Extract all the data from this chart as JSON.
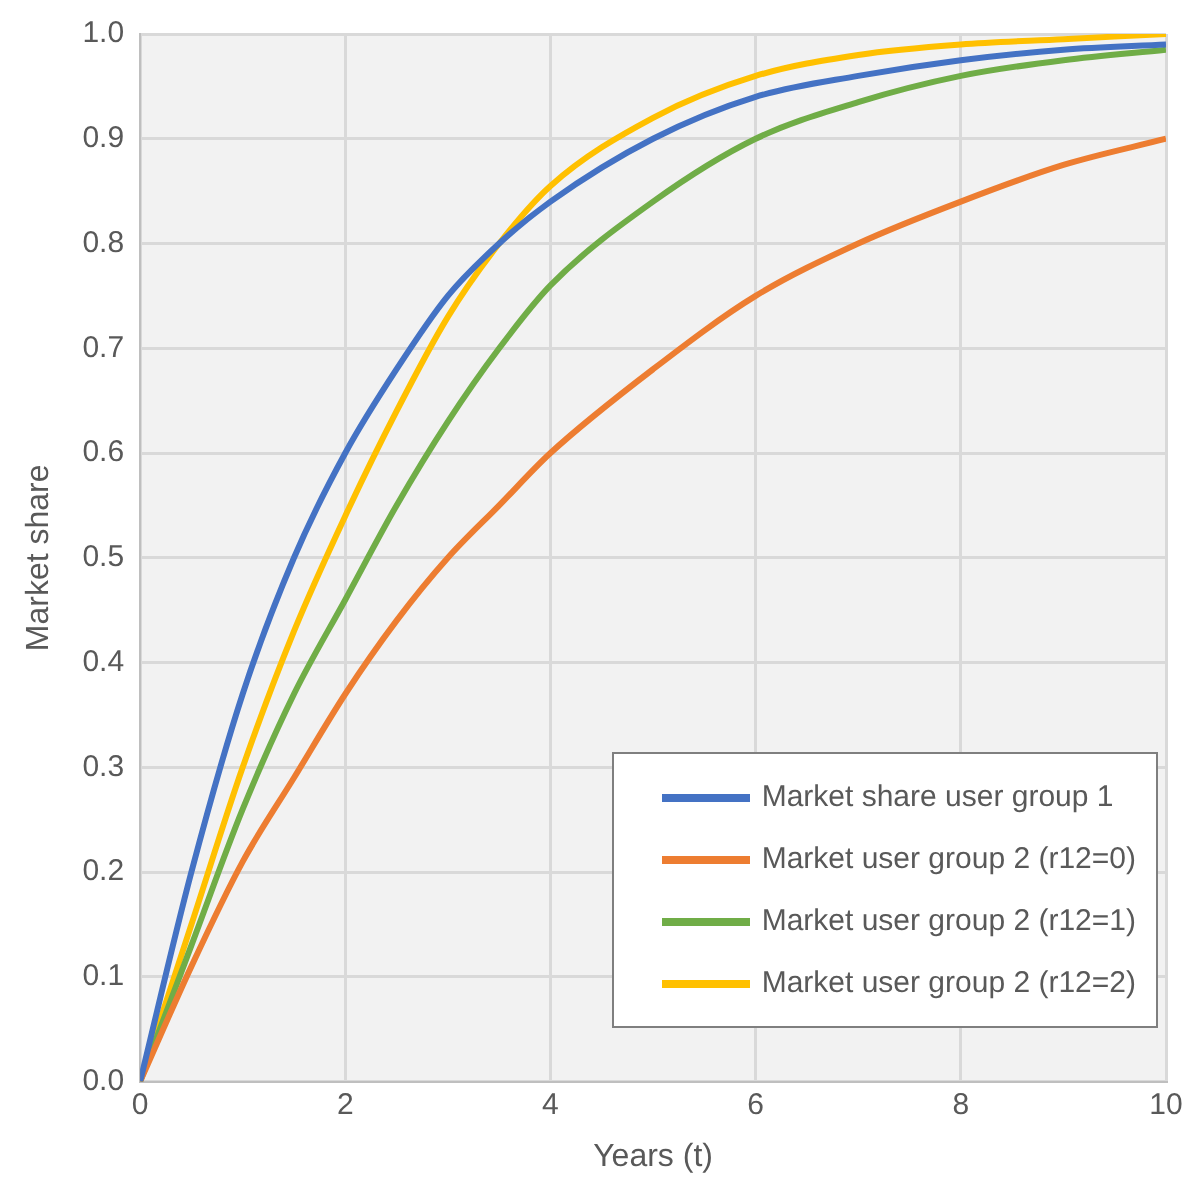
{
  "chart_data": {
    "type": "line",
    "xlabel": "Years (t)",
    "ylabel": "Market share",
    "x": [
      0,
      0.5,
      1,
      1.5,
      2,
      2.5,
      3,
      3.5,
      4,
      5,
      6,
      7,
      8,
      9,
      10
    ],
    "series": [
      {
        "name": "Market share user group 1",
        "color": "#4472c4",
        "values": [
          0,
          0.2,
          0.37,
          0.5,
          0.6,
          0.68,
          0.75,
          0.8,
          0.84,
          0.9,
          0.94,
          0.96,
          0.975,
          0.985,
          0.99
        ]
      },
      {
        "name": "Market user group 2 (r12=0)",
        "color": "#ed7d31",
        "values": [
          0,
          0.11,
          0.21,
          0.29,
          0.37,
          0.44,
          0.5,
          0.55,
          0.6,
          0.68,
          0.75,
          0.8,
          0.84,
          0.875,
          0.9
        ]
      },
      {
        "name": "Market user group 2 (r12=1)",
        "color": "#70ad47",
        "values": [
          0,
          0.13,
          0.26,
          0.37,
          0.46,
          0.55,
          0.63,
          0.7,
          0.76,
          0.84,
          0.9,
          0.935,
          0.96,
          0.975,
          0.985
        ]
      },
      {
        "name": "Market user group 2 (r12=2)",
        "color": "#ffc000",
        "values": [
          0,
          0.15,
          0.3,
          0.43,
          0.54,
          0.64,
          0.73,
          0.8,
          0.855,
          0.92,
          0.96,
          0.98,
          0.99,
          0.995,
          1.0
        ]
      }
    ],
    "xlim": [
      0,
      10
    ],
    "xticks": [
      0,
      2,
      4,
      6,
      8,
      10
    ],
    "ylim": [
      0,
      1
    ],
    "yticks": [
      {
        "value": 0,
        "label": "0.0"
      },
      {
        "value": 0.1,
        "label": "0.1"
      },
      {
        "value": 0.2,
        "label": "0.2"
      },
      {
        "value": 0.3,
        "label": "0.3"
      },
      {
        "value": 0.4,
        "label": "0.4"
      },
      {
        "value": 0.5,
        "label": "0.5"
      },
      {
        "value": 0.6,
        "label": "0.6"
      },
      {
        "value": 0.7,
        "label": "0.7"
      },
      {
        "value": 0.8,
        "label": "0.8"
      },
      {
        "value": 0.9,
        "label": "0.9"
      },
      {
        "value": 1,
        "label": "1.0"
      }
    ],
    "grid": true,
    "legend": "bottom right",
    "marker": "none",
    "line_style": "solid"
  }
}
